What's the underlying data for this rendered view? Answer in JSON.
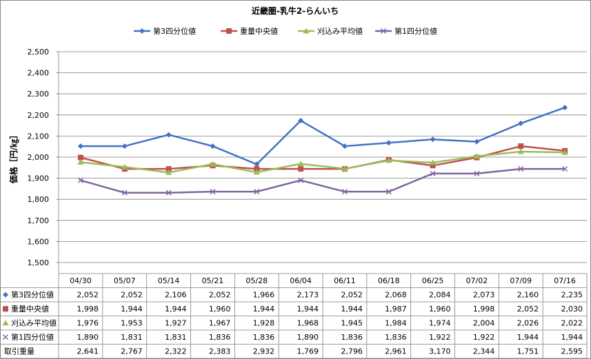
{
  "chart_data": {
    "type": "line",
    "title": "近畿圏-乳牛2-らんいち",
    "ylabel": "価格［円/㎏］",
    "ylim": [
      1500,
      2500
    ],
    "ytick_step": 100,
    "grid": true,
    "legend": "top",
    "categories": [
      "04/30",
      "05/07",
      "05/14",
      "05/21",
      "05/28",
      "06/04",
      "06/11",
      "06/18",
      "06/25",
      "07/02",
      "07/09",
      "07/16"
    ],
    "series": [
      {
        "name": "第3四分位値",
        "color": "#4472c4",
        "marker": "diamond",
        "values": [
          2052,
          2052,
          2106,
          2052,
          1966,
          2173,
          2052,
          2068,
          2084,
          2073,
          2160,
          2235
        ],
        "labels": [
          "2,052",
          "2,052",
          "2,106",
          "2,052",
          "1,966",
          "2,173",
          "2,052",
          "2,068",
          "2,084",
          "2,073",
          "2,160",
          "2,235"
        ]
      },
      {
        "name": "重量中央値",
        "color": "#c0504d",
        "marker": "square",
        "values": [
          1998,
          1944,
          1944,
          1960,
          1944,
          1944,
          1944,
          1987,
          1960,
          1998,
          2052,
          2030
        ],
        "labels": [
          "1,998",
          "1,944",
          "1,944",
          "1,960",
          "1,944",
          "1,944",
          "1,944",
          "1,987",
          "1,960",
          "1,998",
          "2,052",
          "2,030"
        ]
      },
      {
        "name": "刈込み平均値",
        "color": "#9bbb59",
        "marker": "triangle",
        "values": [
          1976,
          1953,
          1927,
          1967,
          1928,
          1968,
          1945,
          1984,
          1974,
          2004,
          2026,
          2022
        ],
        "labels": [
          "1,976",
          "1,953",
          "1,927",
          "1,967",
          "1,928",
          "1,968",
          "1,945",
          "1,984",
          "1,974",
          "2,004",
          "2,026",
          "2,022"
        ]
      },
      {
        "name": "第1四分位値",
        "color": "#8064a2",
        "marker": "x",
        "values": [
          1890,
          1831,
          1831,
          1836,
          1836,
          1890,
          1836,
          1836,
          1922,
          1922,
          1944,
          1944
        ],
        "labels": [
          "1,890",
          "1,831",
          "1,831",
          "1,836",
          "1,836",
          "1,890",
          "1,836",
          "1,836",
          "1,922",
          "1,922",
          "1,944",
          "1,944"
        ]
      }
    ],
    "extra_rows": [
      {
        "name": "取引重量",
        "labels": [
          "2,641",
          "2,767",
          "2,322",
          "2,383",
          "2,932",
          "1,769",
          "2,796",
          "2,961",
          "3,170",
          "2,344",
          "1,751",
          "2,595"
        ]
      }
    ]
  }
}
